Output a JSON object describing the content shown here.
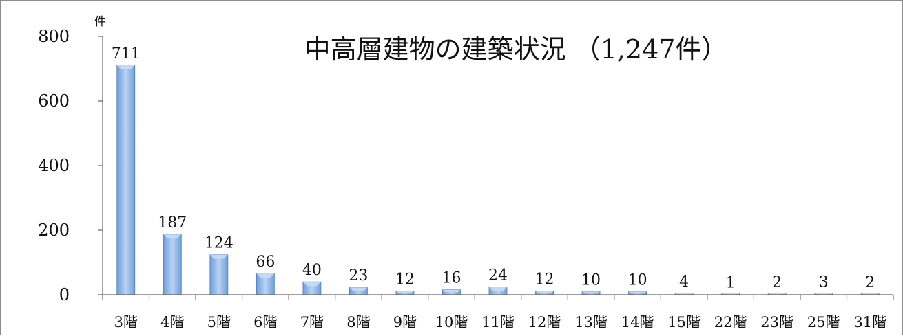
{
  "chart_data": {
    "type": "bar",
    "title": "中高層建物の建築状況 （1,247件）",
    "ylabel": "件",
    "xlabel": "",
    "ylim": [
      0,
      800
    ],
    "yticks": [
      0,
      200,
      400,
      600,
      800
    ],
    "categories": [
      "3階",
      "4階",
      "5階",
      "6階",
      "7階",
      "8階",
      "9階",
      "10階",
      "11階",
      "12階",
      "13階",
      "14階",
      "15階",
      "22階",
      "23階",
      "25階",
      "31階"
    ],
    "values": [
      711,
      187,
      124,
      66,
      40,
      23,
      12,
      16,
      24,
      12,
      10,
      10,
      4,
      1,
      2,
      3,
      2
    ],
    "data_labels": [
      "711",
      "187",
      "124",
      "66",
      "40",
      "23",
      "12",
      "16",
      "24",
      "12",
      "10",
      "10",
      "4",
      "1",
      "2",
      "3",
      "2"
    ],
    "grid": false,
    "legend": "none",
    "colors": {
      "bar_light": "#c6dcf6",
      "bar_mid": "#8fb6e8",
      "bar_dark": "#5a8fd4",
      "bar_edge": "#4f7fc0",
      "axis": "#666666"
    }
  }
}
